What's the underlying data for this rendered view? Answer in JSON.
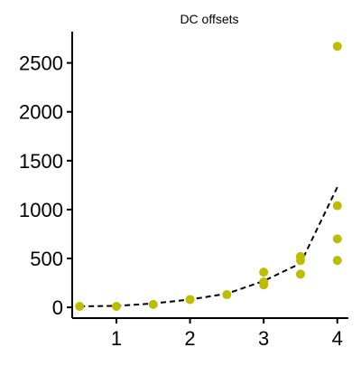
{
  "chart_data": {
    "type": "scatter",
    "title": "DC offsets",
    "xlabel": "",
    "ylabel": "",
    "xlim": [
      0.4,
      4.15
    ],
    "ylim": [
      -110,
      2820
    ],
    "xticks": [
      1,
      2,
      3,
      4
    ],
    "xtick_labels": [
      "1",
      "2",
      "3",
      "4"
    ],
    "yticks": [
      0,
      500,
      1000,
      1500,
      2000,
      2500
    ],
    "ytick_labels": [
      "0",
      "500",
      "1000",
      "1500",
      "2000",
      "2500"
    ],
    "grid": false,
    "legend": "none",
    "colors": {
      "points": "#bcbd00",
      "fit_line": "#000000",
      "axes": "#000000"
    },
    "series": [
      {
        "kind": "scatter",
        "points": [
          {
            "x": 0.5,
            "y": 10
          },
          {
            "x": 1.0,
            "y": 10
          },
          {
            "x": 1.5,
            "y": 30
          },
          {
            "x": 2.0,
            "y": 80
          },
          {
            "x": 2.5,
            "y": 130
          },
          {
            "x": 3.0,
            "y": 360
          },
          {
            "x": 3.0,
            "y": 260
          },
          {
            "x": 3.0,
            "y": 230
          },
          {
            "x": 3.5,
            "y": 520
          },
          {
            "x": 3.5,
            "y": 480
          },
          {
            "x": 3.5,
            "y": 340
          },
          {
            "x": 4.0,
            "y": 2670
          },
          {
            "x": 4.0,
            "y": 1040
          },
          {
            "x": 4.0,
            "y": 700
          },
          {
            "x": 4.0,
            "y": 480
          }
        ]
      },
      {
        "kind": "dashed-line",
        "points": [
          {
            "x": 0.5,
            "y": 10
          },
          {
            "x": 1.0,
            "y": 15
          },
          {
            "x": 1.5,
            "y": 40
          },
          {
            "x": 2.0,
            "y": 80
          },
          {
            "x": 2.5,
            "y": 140
          },
          {
            "x": 3.0,
            "y": 270
          },
          {
            "x": 3.5,
            "y": 450
          },
          {
            "x": 4.0,
            "y": 1230
          }
        ]
      }
    ]
  }
}
